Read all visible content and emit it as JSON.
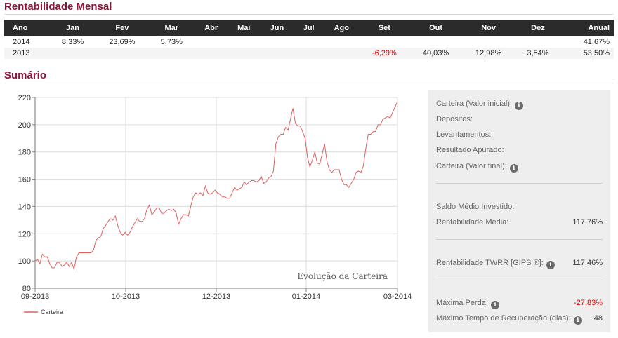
{
  "rent_mensal": {
    "title": "Rentabilidade Mensal",
    "headers": [
      "Ano",
      "Jan",
      "Fev",
      "Mar",
      "Abr",
      "Mai",
      "Jun",
      "Jul",
      "Ago",
      "Set",
      "Out",
      "Nov",
      "Dez",
      "Anual"
    ],
    "rows": [
      [
        "2014",
        "8,33%",
        "23,69%",
        "5,73%",
        "",
        "",
        "",
        "",
        "",
        "",
        "",
        "",
        "",
        "41,67%"
      ],
      [
        "2013",
        "",
        "",
        "",
        "",
        "",
        "",
        "",
        "",
        "-6,29%",
        "40,03%",
        "12,98%",
        "3,54%",
        "53,50%"
      ]
    ],
    "negative_color": "#e00000"
  },
  "sumario": {
    "title": "Sumário"
  },
  "chart_data": {
    "type": "line",
    "title": "Evolução da Carteira",
    "ylim": [
      80,
      220
    ],
    "y_ticks": [
      80,
      100,
      120,
      140,
      160,
      180,
      200,
      220
    ],
    "x_tick_labels": [
      "09-2013",
      "10-2013",
      "12-2013",
      "01-2014",
      "03-2014"
    ],
    "grid": true,
    "legend_position": "bottom-left",
    "series": [
      {
        "name": "Carteira",
        "color": "#e06060",
        "values": [
          100,
          101,
          98,
          105,
          103,
          103,
          98,
          95,
          95,
          99,
          99,
          96,
          97,
          99,
          96,
          99,
          94,
          103,
          106,
          106,
          106,
          106,
          106,
          106,
          108,
          115,
          117,
          118,
          124,
          126,
          129,
          131,
          130,
          133,
          126,
          121,
          119,
          121,
          119,
          121,
          125,
          128,
          131,
          129,
          129,
          131,
          138,
          141,
          134,
          136,
          139,
          139,
          135,
          135,
          137,
          138,
          137,
          138,
          135,
          127,
          131,
          134,
          134,
          133,
          140,
          147,
          150,
          149,
          150,
          148,
          155,
          150,
          149,
          150,
          152,
          150,
          149,
          147,
          147,
          146,
          146,
          150,
          154,
          152,
          153,
          154,
          158,
          156,
          158,
          159,
          159,
          158,
          159,
          162,
          157,
          158,
          161,
          162,
          166,
          186,
          191,
          193,
          193,
          198,
          196,
          204,
          212,
          201,
          199,
          199,
          195,
          190,
          176,
          169,
          174,
          180,
          172,
          171,
          178,
          186,
          173,
          167,
          165,
          167,
          167,
          167,
          160,
          156,
          156,
          154,
          157,
          160,
          165,
          166,
          165,
          170,
          183,
          193,
          193,
          195,
          195,
          200,
          200,
          204,
          205,
          206,
          205,
          209,
          213,
          217
        ]
      }
    ]
  },
  "panel": {
    "carteira_inicial": "Carteira (Valor inicial):",
    "depositos": "Depósitos:",
    "levantamentos": "Levantamentos:",
    "resultado": "Resultado Apurado:",
    "carteira_final": "Carteira (Valor final):",
    "saldo_medio": "Saldo Médio Investido:",
    "rent_media_label": "Rentabilidade Média:",
    "rent_media_value": "117,76%",
    "twrr_label": "Rentabilidade TWRR [GIPS ®]:",
    "twrr_value": "117,46%",
    "max_perda_label": "Máxima Perda:",
    "max_perda_value": "-27,83%",
    "max_tempo_label": "Máximo Tempo de Recuperação (dias):",
    "max_tempo_value": "48",
    "info_glyph": "i"
  }
}
